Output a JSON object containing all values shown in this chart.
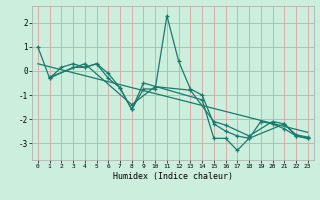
{
  "title": "",
  "xlabel": "Humidex (Indice chaleur)",
  "bg_color": "#cceedd",
  "grid_color": "#ddaaaa",
  "line_color": "#1a7a6e",
  "xlim": [
    -0.5,
    23.5
  ],
  "ylim": [
    -3.7,
    2.7
  ],
  "xticks": [
    0,
    1,
    2,
    3,
    4,
    5,
    6,
    7,
    8,
    9,
    10,
    11,
    12,
    13,
    14,
    15,
    16,
    17,
    18,
    19,
    20,
    21,
    22,
    23
  ],
  "yticks": [
    -3,
    -2,
    -1,
    0,
    1,
    2
  ],
  "line1_x": [
    0,
    1,
    2,
    3,
    4,
    5,
    6,
    7,
    8,
    9,
    10,
    11,
    12,
    13,
    14,
    15,
    16,
    17,
    18,
    19,
    20,
    21,
    22,
    23
  ],
  "line1_y": [
    1.0,
    -0.3,
    0.15,
    0.3,
    0.15,
    0.3,
    -0.3,
    -0.7,
    -1.6,
    -0.75,
    -0.75,
    2.3,
    0.4,
    -0.75,
    -1.0,
    -2.2,
    -2.5,
    -2.7,
    -2.8,
    -2.1,
    -2.2,
    -2.4,
    -2.7,
    -2.8
  ],
  "line2_x": [
    1,
    3,
    4,
    5,
    6,
    7,
    8,
    9,
    14,
    15,
    16,
    17,
    18,
    21,
    22,
    23
  ],
  "line2_y": [
    -0.3,
    0.15,
    0.15,
    0.3,
    -0.1,
    -0.7,
    -1.6,
    -0.5,
    -1.2,
    -2.8,
    -2.8,
    -3.3,
    -2.8,
    -2.2,
    -2.7,
    -2.8
  ],
  "line3_x": [
    1,
    4,
    8,
    10,
    13,
    15,
    16,
    18,
    20,
    21,
    22,
    23
  ],
  "line3_y": [
    -0.25,
    0.3,
    -1.4,
    -0.65,
    -0.8,
    -2.1,
    -2.25,
    -2.7,
    -2.1,
    -2.2,
    -2.65,
    -2.75
  ],
  "trend_x": [
    0,
    23
  ],
  "trend_y": [
    0.3,
    -2.55
  ]
}
